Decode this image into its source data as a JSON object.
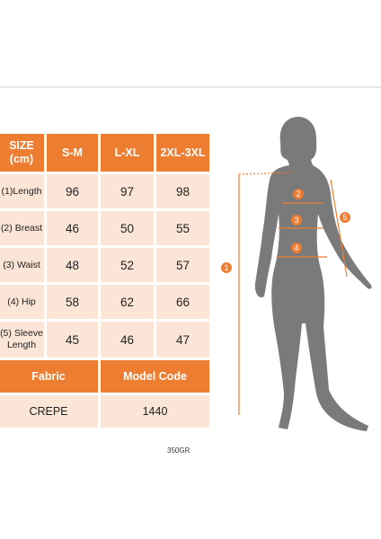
{
  "table": {
    "header": [
      "SIZE\n(cm)",
      "S-M",
      "L-XL",
      "2XL-3XL"
    ],
    "rows": [
      {
        "label": "(1)Length",
        "values": [
          "96",
          "97",
          "98"
        ]
      },
      {
        "label": "(2) Breast",
        "values": [
          "46",
          "50",
          "55"
        ]
      },
      {
        "label": "(3) Waist",
        "values": [
          "48",
          "52",
          "57"
        ]
      },
      {
        "label": "(4) Hip",
        "values": [
          "58",
          "62",
          "66"
        ]
      },
      {
        "label": "(5) Sleeve Length",
        "values": [
          "45",
          "46",
          "47"
        ]
      }
    ],
    "footer_headers": [
      "Fabric",
      "Model Code"
    ],
    "footer_values": [
      "CREPE",
      "1440"
    ]
  },
  "weight": "350GR",
  "figure": {
    "markers": [
      "1",
      "2",
      "3",
      "4",
      "5"
    ]
  },
  "colors": {
    "accent": "#ed7d31",
    "cell": "#fbe5d6",
    "silhouette": "#777777"
  }
}
